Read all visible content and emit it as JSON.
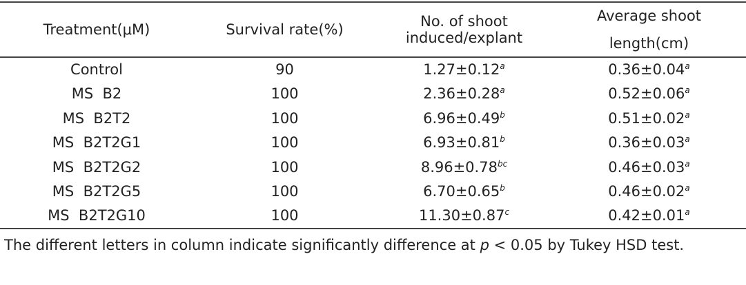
{
  "table": {
    "header": [
      [
        "Treatment(μM)"
      ],
      [
        "Survival rate(%)"
      ],
      [
        "No. of shoot",
        "induced/explant"
      ],
      [
        "Average shoot",
        "length(cm)"
      ]
    ],
    "rows": [
      [
        "Control",
        "90",
        {
          "text": "1.27±0.12",
          "sup": "a"
        },
        {
          "text": "0.36±0.04",
          "sup": "a"
        }
      ],
      [
        "MS  B2",
        "100",
        {
          "text": "2.36±0.28",
          "sup": "a"
        },
        {
          "text": "0.52±0.06",
          "sup": "a"
        }
      ],
      [
        "MS  B2T2",
        "100",
        {
          "text": "6.96±0.49",
          "sup": "b"
        },
        {
          "text": "0.51±0.02",
          "sup": "a"
        }
      ],
      [
        "MS  B2T2G1",
        "100",
        {
          "text": "6.93±0.81",
          "sup": "b"
        },
        {
          "text": "0.36±0.03",
          "sup": "a"
        }
      ],
      [
        "MS  B2T2G2",
        "100",
        {
          "text": "8.96±0.78",
          "sup": "bc"
        },
        {
          "text": "0.46±0.03",
          "sup": "a"
        }
      ],
      [
        "MS  B2T2G5",
        "100",
        {
          "text": "6.70±0.65",
          "sup": "b"
        },
        {
          "text": "0.46±0.02",
          "sup": "a"
        }
      ],
      [
        "MS  B2T2G10",
        "100",
        {
          "text": "11.30±0.87",
          "sup": "c"
        },
        {
          "text": "0.42±0.01",
          "sup": "a"
        }
      ]
    ]
  },
  "note": [
    "The different letters in column indicate significantly difference at ",
    "p",
    " < 0.05 by Tukey HSD test."
  ]
}
